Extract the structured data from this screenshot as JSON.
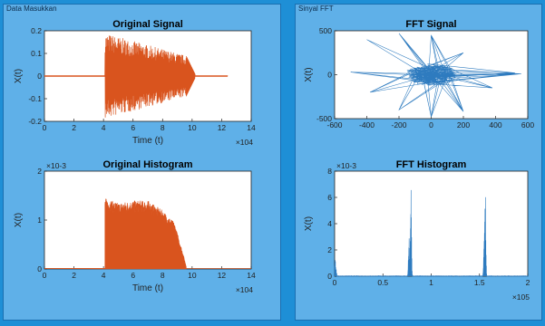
{
  "panels": {
    "left_label": "Data Masukkan",
    "right_label": "Sinyal FFT"
  },
  "colors": {
    "signal": "#d9541e",
    "fft": "#2e7bbf",
    "panel": "#5fb0e8",
    "frame": "#1e8fd6"
  },
  "chart_data": [
    {
      "id": "original-signal",
      "type": "line",
      "title": "Original Signal",
      "xlabel": "Time (t)",
      "ylabel": "X(t)",
      "x_exponent": "×10^4",
      "xlim": [
        0,
        14
      ],
      "ylim": [
        -0.2,
        0.2
      ],
      "xticks": [
        "0",
        "2",
        "4",
        "6",
        "8",
        "10",
        "12",
        "14"
      ],
      "yticks": [
        "-0.2",
        "-0.1",
        "0",
        "0.1",
        "0.2"
      ],
      "segments": [
        {
          "x_start": 0,
          "x_end": 4.1,
          "amplitude": 0.003
        },
        {
          "x_start": 4.1,
          "x_end": 9.6,
          "amplitude_start": 0.19,
          "amplitude_end": 0.09,
          "shape": "burst"
        },
        {
          "x_start": 9.6,
          "x_end": 10.2,
          "amplitude": 0.02,
          "shape": "decay"
        },
        {
          "x_start": 10.2,
          "x_end": 12.4,
          "amplitude": 0.004
        }
      ]
    },
    {
      "id": "fft-signal",
      "type": "scatter",
      "title": "FFT Signal",
      "xlabel": "",
      "ylabel": "X(t)",
      "xlim": [
        -600,
        600
      ],
      "ylim": [
        -500,
        500
      ],
      "xticks": [
        "-600",
        "-400",
        "-200",
        "0",
        "200",
        "400",
        "600"
      ],
      "yticks": [
        "-500",
        "0",
        "500"
      ],
      "hull_points": [
        [
          -400,
          400
        ],
        [
          -200,
          470
        ],
        [
          0,
          450
        ],
        [
          200,
          250
        ],
        [
          380,
          60
        ],
        [
          520,
          20
        ],
        [
          560,
          10
        ],
        [
          380,
          -150
        ],
        [
          200,
          -420
        ],
        [
          0,
          -480
        ],
        [
          -200,
          -400
        ],
        [
          -380,
          -200
        ],
        [
          -500,
          30
        ]
      ]
    },
    {
      "id": "original-histogram",
      "type": "area",
      "title": "Original Histogram",
      "xlabel": "Time (t)",
      "ylabel": "X(t)",
      "y_exponent": "×10^-3",
      "x_exponent": "×10^4",
      "xlim": [
        0,
        14
      ],
      "ylim": [
        0,
        2
      ],
      "xticks": [
        "0",
        "2",
        "4",
        "6",
        "8",
        "10",
        "12",
        "14"
      ],
      "yticks": [
        "0",
        "1",
        "2"
      ],
      "envelope": [
        [
          4.1,
          1.45
        ],
        [
          5,
          1.35
        ],
        [
          6,
          1.4
        ],
        [
          7,
          1.4
        ],
        [
          8,
          1.2
        ],
        [
          8.8,
          0.95
        ],
        [
          9.4,
          0.3
        ],
        [
          9.6,
          0.05
        ]
      ]
    },
    {
      "id": "fft-histogram",
      "type": "line",
      "title": "FFT Histogram",
      "xlabel": "",
      "ylabel": "X(t)",
      "y_exponent": "×10^-3",
      "x_exponent": "×10^5",
      "xlim": [
        0,
        2
      ],
      "ylim": [
        0,
        8
      ],
      "xticks": [
        "0",
        "0.5",
        "1",
        "1.5",
        "2"
      ],
      "yticks": [
        "0",
        "2",
        "4",
        "6",
        "8"
      ],
      "peaks": [
        [
          0.005,
          1.4
        ],
        [
          0.77,
          3.0
        ],
        [
          0.79,
          7.4
        ],
        [
          1.55,
          4.2
        ],
        [
          1.56,
          7.6
        ]
      ]
    }
  ]
}
